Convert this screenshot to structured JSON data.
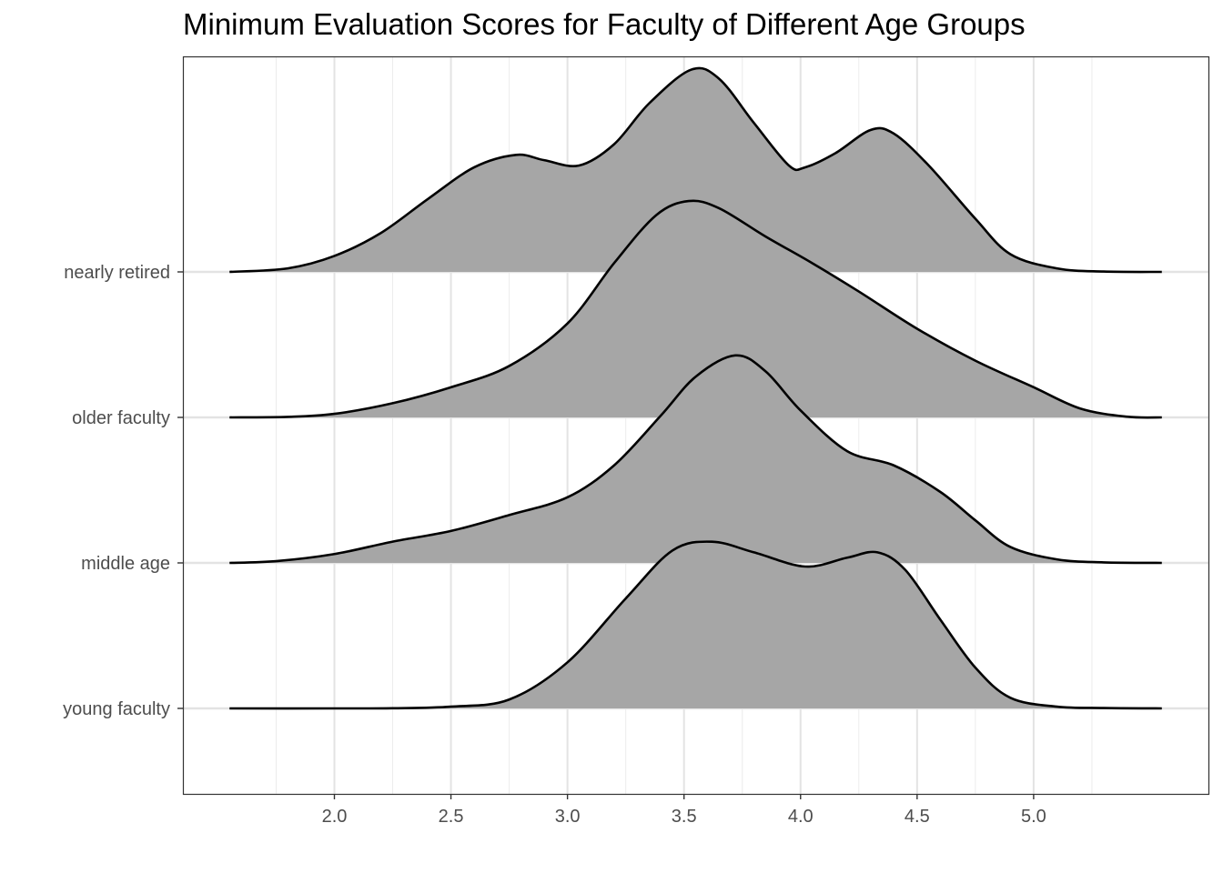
{
  "chart_data": {
    "type": "ridgeline",
    "title": "Minimum Evaluation Scores for Faculty of Different Age Groups",
    "xlabel": "",
    "ylabel": "",
    "xlim": [
      1.35,
      5.75
    ],
    "x_ticks": [
      2.0,
      2.5,
      3.0,
      3.5,
      4.0,
      4.5,
      5.0
    ],
    "x_tick_labels": [
      "2.0",
      "2.5",
      "3.0",
      "3.5",
      "4.0",
      "4.5",
      "5.0"
    ],
    "categories": [
      "young faculty",
      "middle age",
      "older faculty",
      "nearly retired"
    ],
    "grid": true,
    "fill_color": "#a6a6a6",
    "line_color": "#000000",
    "series": [
      {
        "name": "young faculty",
        "points": [
          [
            1.55,
            0
          ],
          [
            2.0,
            0
          ],
          [
            2.25,
            0.001
          ],
          [
            2.5,
            0.01
          ],
          [
            2.75,
            0.05
          ],
          [
            3.0,
            0.26
          ],
          [
            3.25,
            0.62
          ],
          [
            3.45,
            0.89
          ],
          [
            3.62,
            0.94
          ],
          [
            3.8,
            0.88
          ],
          [
            4.02,
            0.8
          ],
          [
            4.2,
            0.85
          ],
          [
            4.33,
            0.88
          ],
          [
            4.45,
            0.78
          ],
          [
            4.6,
            0.5
          ],
          [
            4.75,
            0.23
          ],
          [
            4.9,
            0.06
          ],
          [
            5.1,
            0.01
          ],
          [
            5.3,
            0.002
          ],
          [
            5.55,
            0
          ]
        ]
      },
      {
        "name": "middle age",
        "points": [
          [
            1.55,
            0
          ],
          [
            1.75,
            0.01
          ],
          [
            2.0,
            0.05
          ],
          [
            2.25,
            0.12
          ],
          [
            2.5,
            0.18
          ],
          [
            2.75,
            0.27
          ],
          [
            3.0,
            0.37
          ],
          [
            3.2,
            0.55
          ],
          [
            3.4,
            0.83
          ],
          [
            3.55,
            1.05
          ],
          [
            3.72,
            1.17
          ],
          [
            3.85,
            1.08
          ],
          [
            4.0,
            0.86
          ],
          [
            4.2,
            0.63
          ],
          [
            4.4,
            0.55
          ],
          [
            4.6,
            0.4
          ],
          [
            4.75,
            0.24
          ],
          [
            4.9,
            0.09
          ],
          [
            5.1,
            0.02
          ],
          [
            5.3,
            0.003
          ],
          [
            5.55,
            0
          ]
        ]
      },
      {
        "name": "older faculty",
        "points": [
          [
            1.55,
            0
          ],
          [
            1.8,
            0.003
          ],
          [
            2.0,
            0.02
          ],
          [
            2.25,
            0.08
          ],
          [
            2.5,
            0.17
          ],
          [
            2.75,
            0.29
          ],
          [
            3.0,
            0.53
          ],
          [
            3.2,
            0.87
          ],
          [
            3.38,
            1.14
          ],
          [
            3.52,
            1.22
          ],
          [
            3.65,
            1.18
          ],
          [
            3.85,
            1.02
          ],
          [
            4.05,
            0.87
          ],
          [
            4.25,
            0.71
          ],
          [
            4.5,
            0.5
          ],
          [
            4.75,
            0.32
          ],
          [
            5.0,
            0.17
          ],
          [
            5.2,
            0.05
          ],
          [
            5.4,
            0.004
          ],
          [
            5.55,
            0
          ]
        ]
      },
      {
        "name": "nearly retired",
        "points": [
          [
            1.55,
            0
          ],
          [
            1.8,
            0.02
          ],
          [
            2.0,
            0.09
          ],
          [
            2.2,
            0.22
          ],
          [
            2.4,
            0.41
          ],
          [
            2.6,
            0.59
          ],
          [
            2.78,
            0.66
          ],
          [
            2.9,
            0.63
          ],
          [
            3.05,
            0.6
          ],
          [
            3.2,
            0.72
          ],
          [
            3.35,
            0.95
          ],
          [
            3.53,
            1.14
          ],
          [
            3.65,
            1.09
          ],
          [
            3.8,
            0.84
          ],
          [
            3.95,
            0.6
          ],
          [
            4.02,
            0.59
          ],
          [
            4.15,
            0.67
          ],
          [
            4.3,
            0.8
          ],
          [
            4.4,
            0.78
          ],
          [
            4.55,
            0.6
          ],
          [
            4.75,
            0.3
          ],
          [
            4.9,
            0.1
          ],
          [
            5.1,
            0.02
          ],
          [
            5.3,
            0.002
          ],
          [
            5.55,
            0
          ]
        ]
      }
    ]
  }
}
